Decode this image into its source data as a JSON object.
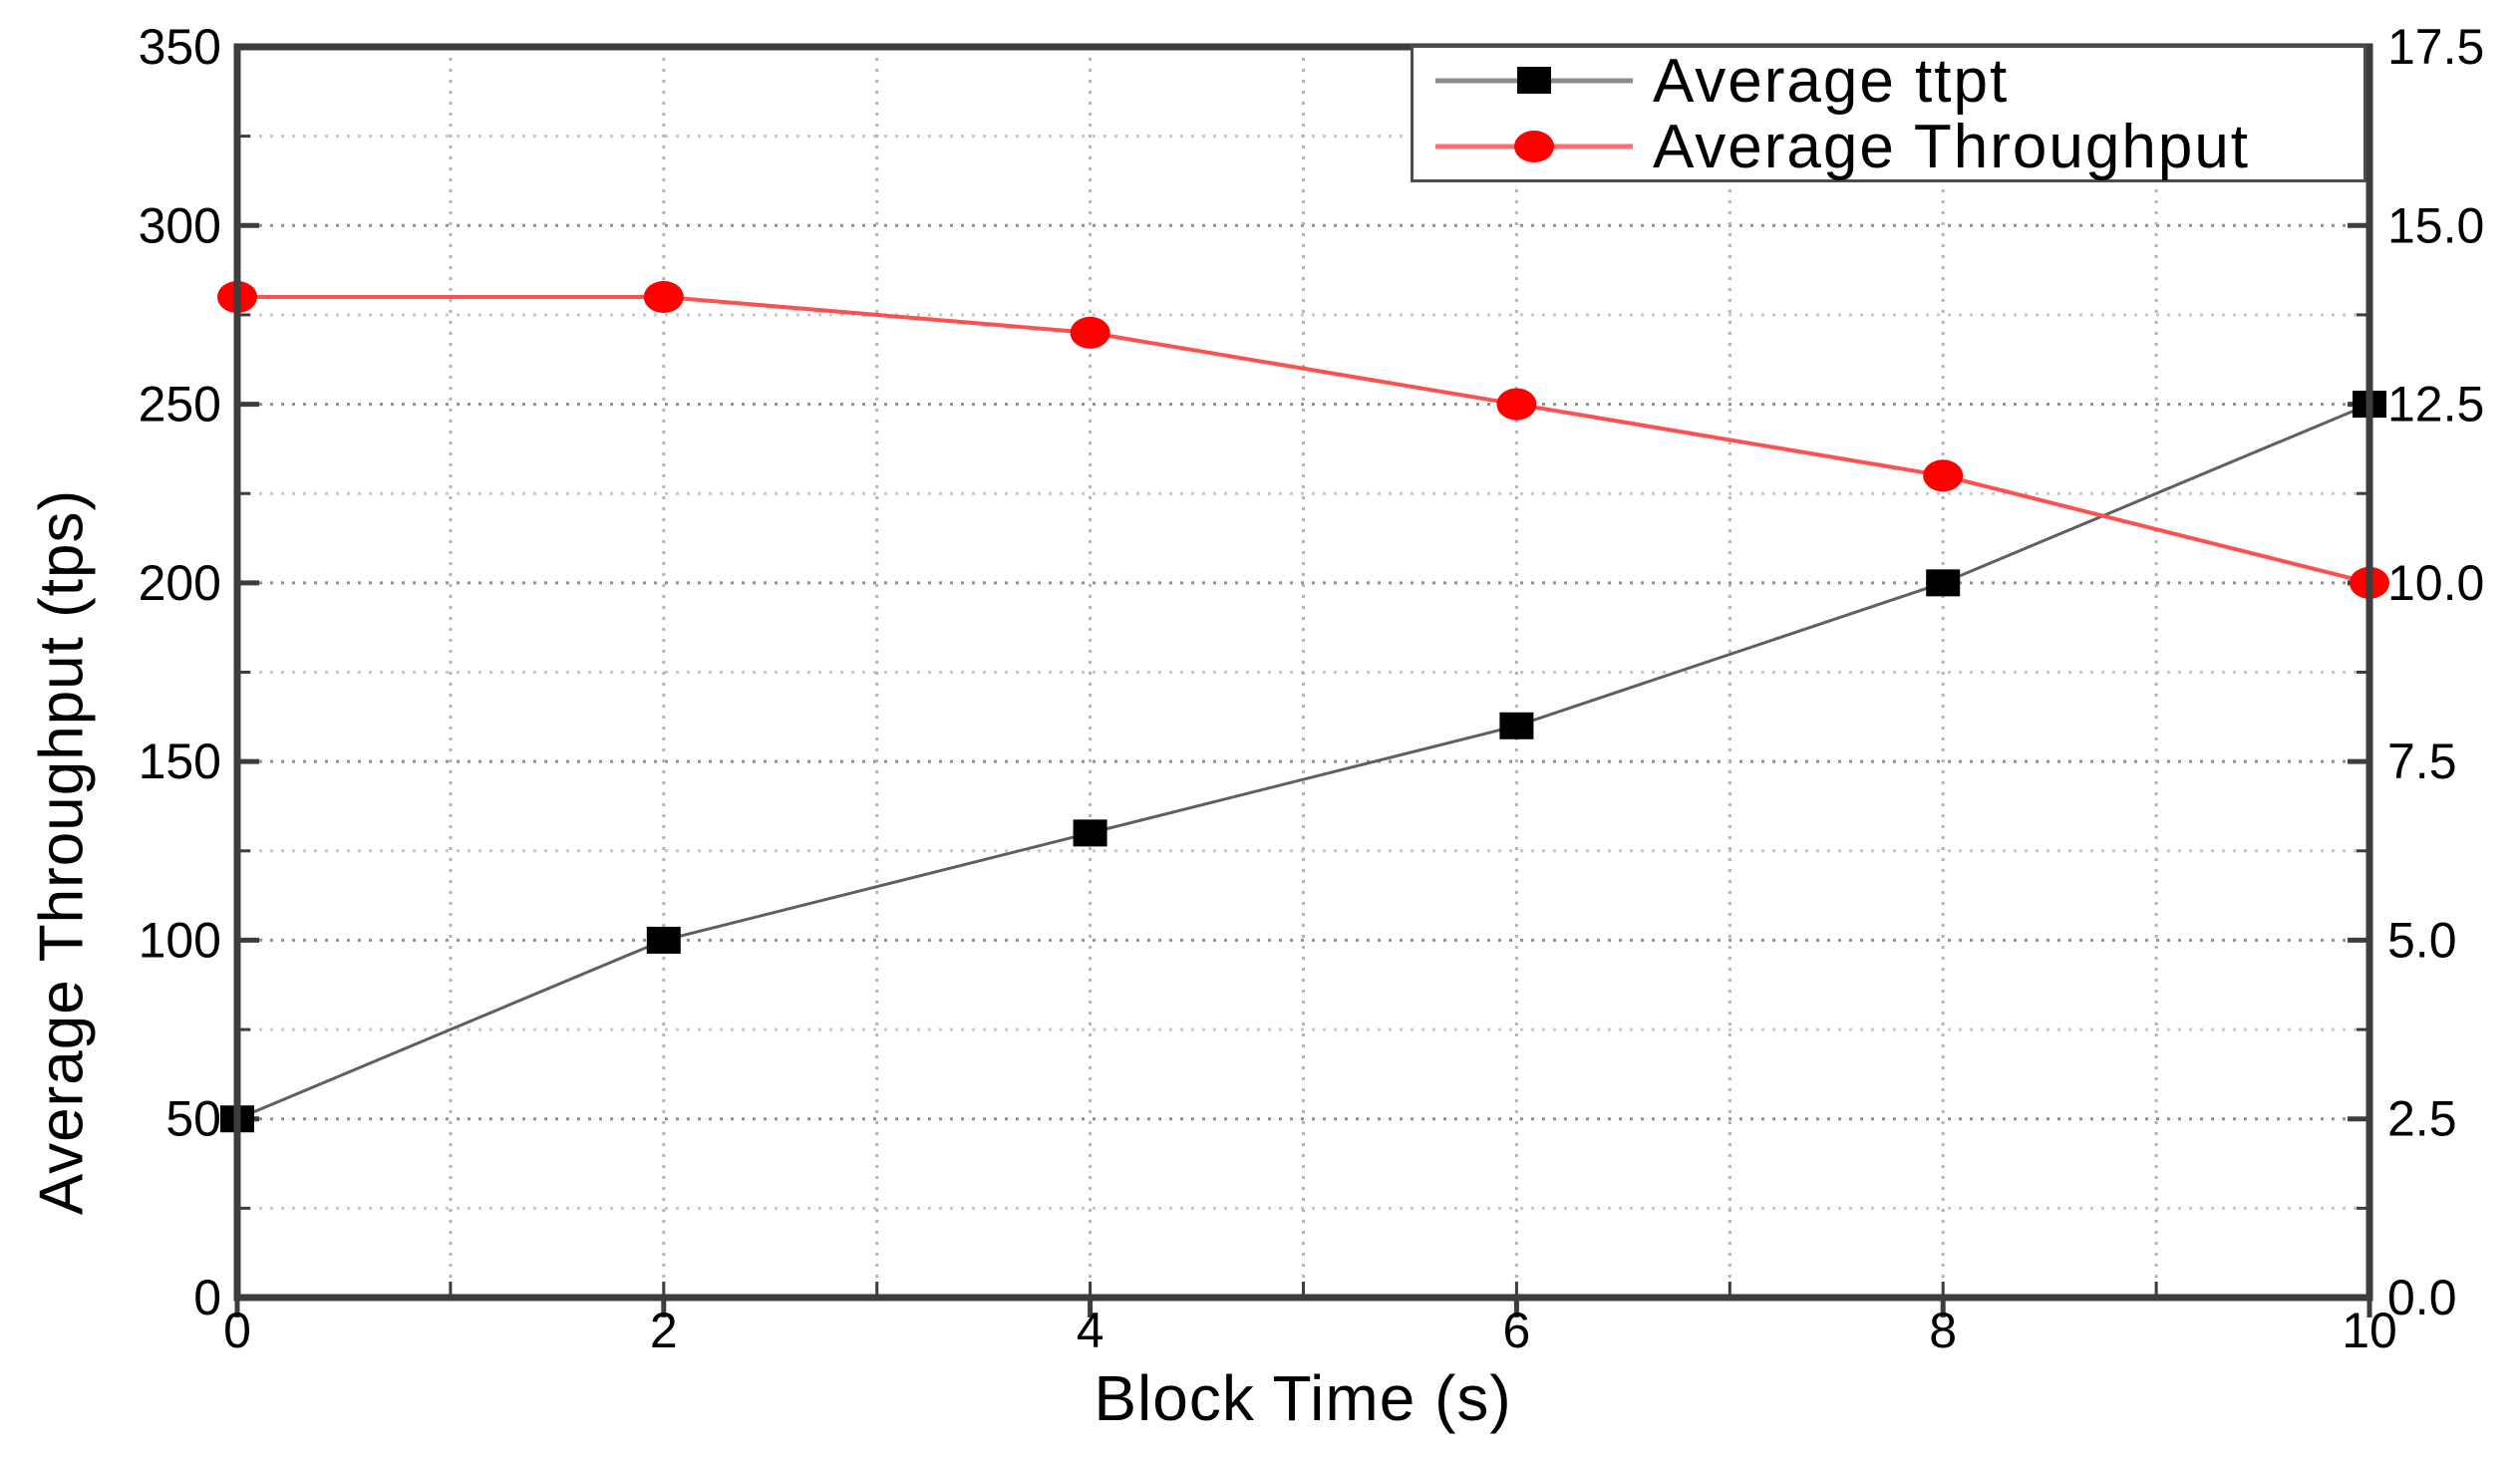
{
  "figure": {
    "background": "#ffffff",
    "border_color": "#3d3d3d",
    "grid_color_major": "#909090",
    "grid_color_minor": "#c8c8c8",
    "grid_color_vertical": "#b4b4b4"
  },
  "chart_data": {
    "type": "line",
    "title": "",
    "xlabel": "Block Time (s)",
    "ylabel_left": "Average Throughput (tps)",
    "grid": {
      "style": "dotted",
      "horizontal_minor_step": 25,
      "vertical_step": 1
    },
    "x_axis": {
      "min": 0,
      "max": 10,
      "major_ticks": [
        0,
        2,
        4,
        6,
        8,
        10
      ],
      "tick_labels": [
        "0",
        "2",
        "4",
        "6",
        "8",
        "10"
      ],
      "minor_tick_step": 1
    },
    "left_axis": {
      "min": 0,
      "max": 350,
      "major_ticks": [
        0,
        50,
        100,
        150,
        200,
        250,
        300,
        350
      ],
      "tick_labels": [
        "0",
        "50",
        "100",
        "150",
        "200",
        "250",
        "300",
        "350"
      ],
      "minor_tick_step": 25
    },
    "right_axis": {
      "min": 0,
      "max": 17.5,
      "major_ticks": [
        0,
        2.5,
        5,
        7.5,
        10,
        12.5,
        15,
        17.5
      ],
      "tick_labels": [
        "0.0",
        "2.5",
        "5.0",
        "7.5",
        "10.0",
        "12.5",
        "15.0",
        "17.5"
      ],
      "minor_tick_step": 1.25
    },
    "legend": {
      "position": "top-right"
    },
    "series": [
      {
        "name": "Average ttpt",
        "axis": "right",
        "marker": "square",
        "marker_color": "#000000",
        "line_color": "#5f5f5f",
        "legend_line_color": "#8c8c8c",
        "x": [
          0,
          2,
          4,
          6,
          8,
          10
        ],
        "values": [
          2.5,
          5.0,
          6.5,
          8.0,
          10.0,
          12.5
        ],
        "left_axis_equivalent": [
          50,
          100,
          130,
          160,
          200,
          250
        ]
      },
      {
        "name": "Average Throughput",
        "axis": "left",
        "marker": "circle",
        "marker_color": "#ff0000",
        "line_color": "#ff5050",
        "legend_line_color": "#ff6e6e",
        "x": [
          0,
          2,
          4,
          6,
          8,
          10
        ],
        "values": [
          280,
          280,
          270,
          250,
          230,
          200
        ]
      }
    ]
  }
}
